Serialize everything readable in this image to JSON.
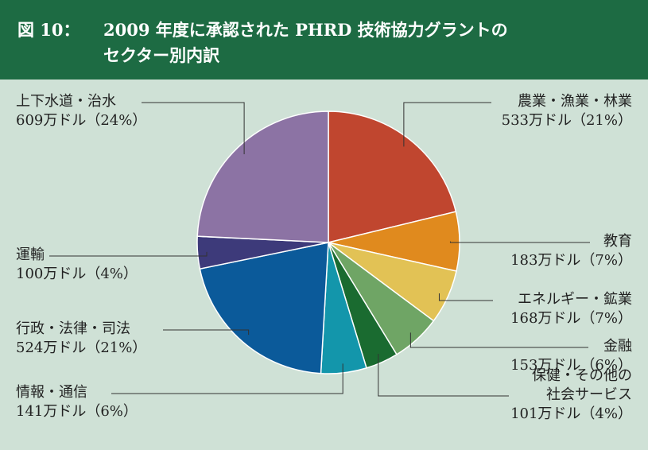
{
  "figure_label": "図 10：",
  "chart_data": {
    "type": "pie",
    "title": "2009 年度に承認された PHRD 技術協力グラントの\nセクター別内訳",
    "categories": [
      "農業・漁業・林業",
      "教育",
      "エネルギー・鉱業",
      "金融",
      "保健・その他の\n社会サービス",
      "情報・通信",
      "行政・法律・司法",
      "運輸",
      "上下水道・治水"
    ],
    "values": [
      533,
      183,
      168,
      153,
      101,
      141,
      524,
      100,
      609
    ],
    "value_labels": [
      "533万ドル（21%）",
      "183万ドル（7%）",
      "168万ドル（7%）",
      "153万ドル（6%）",
      "101万ドル（4%）",
      "141万ドル（6%）",
      "524万ドル（21%）",
      "100万ドル（4%）",
      "609万ドル（24%）"
    ],
    "colors": [
      "#c0462f",
      "#e08a1e",
      "#e2c255",
      "#6fa565",
      "#1a6b30",
      "#1396ab",
      "#0b5a9a",
      "#3d3a7a",
      "#8c73a4"
    ]
  }
}
